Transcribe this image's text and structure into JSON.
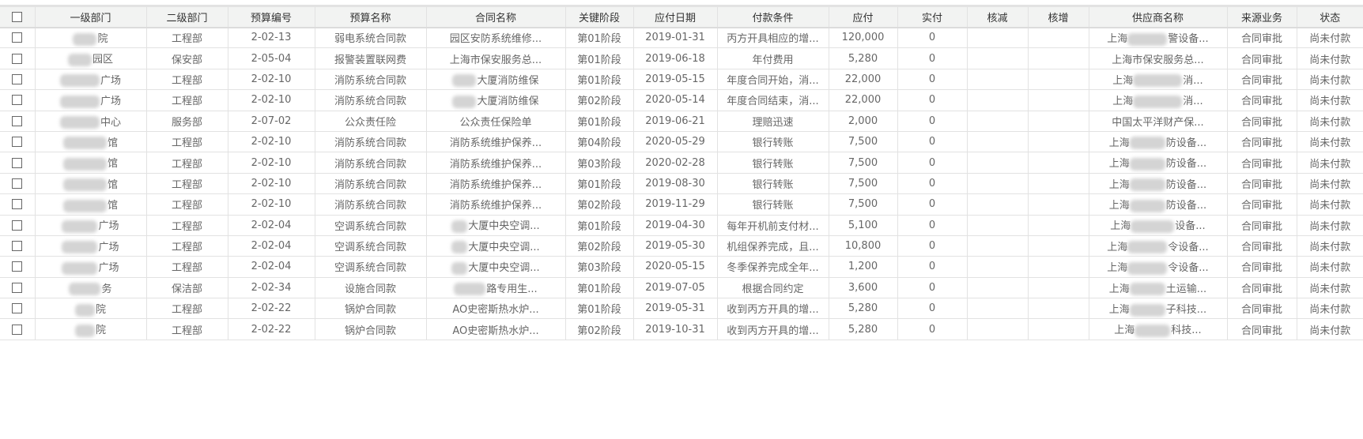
{
  "columns": [
    "",
    "一级部门",
    "二级部门",
    "预算编号",
    "预算名称",
    "合同名称",
    "关键阶段",
    "应付日期",
    "付款条件",
    "应付",
    "实付",
    "核减",
    "核增",
    "供应商名称",
    "来源业务",
    "状态"
  ],
  "rows": [
    {
      "dept1": "院",
      "dept2": "工程部",
      "budget_no": "2-02-13",
      "budget_name": "弱电系统合同款",
      "contract": "园区安防系统维修...",
      "stage": "第01阶段",
      "due_date": "2019-01-31",
      "terms": "丙方开具相应的增...",
      "payable": "120,000",
      "paid": "0",
      "deduct": "",
      "add": "",
      "supplier": "上海",
      "supplier_tail": "警设备...",
      "source": "合同审批",
      "status": "尚未付款",
      "b1": 30,
      "bc": 0,
      "bs": 50
    },
    {
      "dept1": "园区",
      "dept2": "保安部",
      "budget_no": "2-05-04",
      "budget_name": "报警装置联网费",
      "contract": "上海市保安服务总...",
      "stage": "第01阶段",
      "due_date": "2019-06-18",
      "terms": "年付费用",
      "payable": "5,280",
      "paid": "0",
      "deduct": "",
      "add": "",
      "supplier": "上海市保安服务总...",
      "supplier_tail": "",
      "source": "合同审批",
      "status": "尚未付款",
      "b1": 30,
      "bc": 0,
      "bs": 0
    },
    {
      "dept1": "广场",
      "dept2": "工程部",
      "budget_no": "2-02-10",
      "budget_name": "消防系统合同款",
      "contract": "大厦消防维保",
      "stage": "第01阶段",
      "due_date": "2019-05-15",
      "terms": "年度合同开始，消...",
      "payable": "22,000",
      "paid": "0",
      "deduct": "",
      "add": "",
      "supplier": "上海",
      "supplier_tail": "消...",
      "source": "合同审批",
      "status": "尚未付款",
      "b1": 50,
      "bc": 30,
      "bs": 62
    },
    {
      "dept1": "广场",
      "dept2": "工程部",
      "budget_no": "2-02-10",
      "budget_name": "消防系统合同款",
      "contract": "大厦消防维保",
      "stage": "第02阶段",
      "due_date": "2020-05-14",
      "terms": "年度合同结束，消...",
      "payable": "22,000",
      "paid": "0",
      "deduct": "",
      "add": "",
      "supplier": "上海",
      "supplier_tail": "消...",
      "source": "合同审批",
      "status": "尚未付款",
      "b1": 50,
      "bc": 30,
      "bs": 62
    },
    {
      "dept1": "中心",
      "dept2": "服务部",
      "budget_no": "2-07-02",
      "budget_name": "公众责任险",
      "contract": "公众责任保险单",
      "stage": "第01阶段",
      "due_date": "2019-06-21",
      "terms": "理赔迅速",
      "payable": "2,000",
      "paid": "0",
      "deduct": "",
      "add": "",
      "supplier": "中国太平洋财产保...",
      "supplier_tail": "",
      "source": "合同审批",
      "status": "尚未付款",
      "b1": 50,
      "bc": 0,
      "bs": 0
    },
    {
      "dept1": "馆",
      "dept2": "工程部",
      "budget_no": "2-02-10",
      "budget_name": "消防系统合同款",
      "contract": "消防系统维护保养...",
      "stage": "第04阶段",
      "due_date": "2020-05-29",
      "terms": "银行转账",
      "payable": "7,500",
      "paid": "0",
      "deduct": "",
      "add": "",
      "supplier": "上海",
      "supplier_tail": "防设备...",
      "source": "合同审批",
      "status": "尚未付款",
      "b1": 55,
      "bc": 0,
      "bs": 45
    },
    {
      "dept1": "馆",
      "dept2": "工程部",
      "budget_no": "2-02-10",
      "budget_name": "消防系统合同款",
      "contract": "消防系统维护保养...",
      "stage": "第03阶段",
      "due_date": "2020-02-28",
      "terms": "银行转账",
      "payable": "7,500",
      "paid": "0",
      "deduct": "",
      "add": "",
      "supplier": "上海",
      "supplier_tail": "防设备...",
      "source": "合同审批",
      "status": "尚未付款",
      "b1": 55,
      "bc": 0,
      "bs": 45
    },
    {
      "dept1": "馆",
      "dept2": "工程部",
      "budget_no": "2-02-10",
      "budget_name": "消防系统合同款",
      "contract": "消防系统维护保养...",
      "stage": "第01阶段",
      "due_date": "2019-08-30",
      "terms": "银行转账",
      "payable": "7,500",
      "paid": "0",
      "deduct": "",
      "add": "",
      "supplier": "上海",
      "supplier_tail": "防设备...",
      "source": "合同审批",
      "status": "尚未付款",
      "b1": 55,
      "bc": 0,
      "bs": 45
    },
    {
      "dept1": "馆",
      "dept2": "工程部",
      "budget_no": "2-02-10",
      "budget_name": "消防系统合同款",
      "contract": "消防系统维护保养...",
      "stage": "第02阶段",
      "due_date": "2019-11-29",
      "terms": "银行转账",
      "payable": "7,500",
      "paid": "0",
      "deduct": "",
      "add": "",
      "supplier": "上海",
      "supplier_tail": "防设备...",
      "source": "合同审批",
      "status": "尚未付款",
      "b1": 55,
      "bc": 0,
      "bs": 45
    },
    {
      "dept1": "广场",
      "dept2": "工程部",
      "budget_no": "2-02-04",
      "budget_name": "空调系统合同款",
      "contract": "大厦中央空调...",
      "stage": "第01阶段",
      "due_date": "2019-04-30",
      "terms": "每年开机前支付材...",
      "payable": "5,100",
      "paid": "0",
      "deduct": "",
      "add": "",
      "supplier": "上海",
      "supplier_tail": "设备...",
      "source": "合同审批",
      "status": "尚未付款",
      "b1": 45,
      "bc": 20,
      "bs": 55
    },
    {
      "dept1": "广场",
      "dept2": "工程部",
      "budget_no": "2-02-04",
      "budget_name": "空调系统合同款",
      "contract": "大厦中央空调...",
      "stage": "第02阶段",
      "due_date": "2019-05-30",
      "terms": "机组保养完成，且...",
      "payable": "10,800",
      "paid": "0",
      "deduct": "",
      "add": "",
      "supplier": "上海",
      "supplier_tail": "令设备...",
      "source": "合同审批",
      "status": "尚未付款",
      "b1": 45,
      "bc": 20,
      "bs": 50
    },
    {
      "dept1": "广场",
      "dept2": "工程部",
      "budget_no": "2-02-04",
      "budget_name": "空调系统合同款",
      "contract": "大厦中央空调...",
      "stage": "第03阶段",
      "due_date": "2020-05-15",
      "terms": "冬季保养完成全年...",
      "payable": "1,200",
      "paid": "0",
      "deduct": "",
      "add": "",
      "supplier": "上海",
      "supplier_tail": "令设备...",
      "source": "合同审批",
      "status": "尚未付款",
      "b1": 45,
      "bc": 20,
      "bs": 50
    },
    {
      "dept1": "务",
      "dept2": "保洁部",
      "budget_no": "2-02-34",
      "budget_name": "设施合同款",
      "contract": "路专用生...",
      "stage": "第01阶段",
      "due_date": "2019-07-05",
      "terms": "根据合同约定",
      "payable": "3,600",
      "paid": "0",
      "deduct": "",
      "add": "",
      "supplier": "上海",
      "supplier_tail": "土运输...",
      "source": "合同审批",
      "status": "尚未付款",
      "b1": 40,
      "bc": 40,
      "bs": 45
    },
    {
      "dept1": "院",
      "dept2": "工程部",
      "budget_no": "2-02-22",
      "budget_name": "锅炉合同款",
      "contract": "AO史密斯热水炉...",
      "stage": "第01阶段",
      "due_date": "2019-05-31",
      "terms": "收到丙方开具的增...",
      "payable": "5,280",
      "paid": "0",
      "deduct": "",
      "add": "",
      "supplier": "上海",
      "supplier_tail": "子科技...",
      "source": "合同审批",
      "status": "尚未付款",
      "b1": 25,
      "bc": 0,
      "bs": 45
    },
    {
      "dept1": "院",
      "dept2": "工程部",
      "budget_no": "2-02-22",
      "budget_name": "锅炉合同款",
      "contract": "AO史密斯热水炉...",
      "stage": "第02阶段",
      "due_date": "2019-10-31",
      "terms": "收到丙方开具的增...",
      "payable": "5,280",
      "paid": "0",
      "deduct": "",
      "add": "",
      "supplier": "上海",
      "supplier_tail": "科技...",
      "source": "合同审批",
      "status": "尚未付款",
      "b1": 25,
      "bc": 0,
      "bs": 45
    }
  ]
}
